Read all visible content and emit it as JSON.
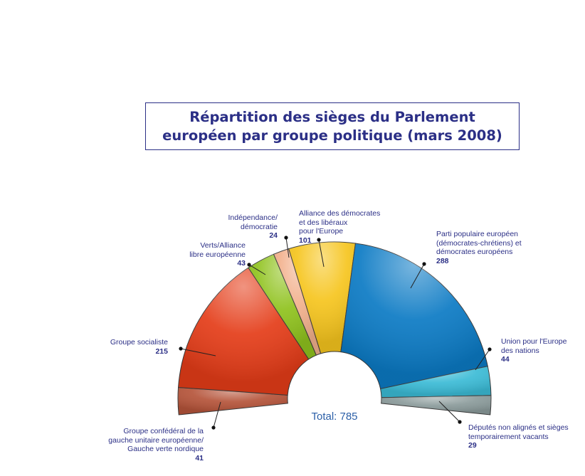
{
  "chart_data": {
    "type": "pie",
    "title": [
      "Répartition des sièges du Parlement",
      "européen par groupe politique (mars 2008)"
    ],
    "total_label": "Total: 785",
    "slices": [
      {
        "name": "Groupe confédéral de la\ngauche unitaire européenne/\nGauche verte nordique",
        "value": 41,
        "color": "#b5543a"
      },
      {
        "name": "Groupe socialiste",
        "value": 215,
        "color": "#e43c18"
      },
      {
        "name": "Verts/Alliance\nlibre européenne",
        "value": 43,
        "color": "#8fc21d"
      },
      {
        "name": "Indépendance/\ndémocratie",
        "value": 24,
        "color": "#f2b08c"
      },
      {
        "name": "Alliance des démocrates\net des libéraux\npour l'Europe",
        "value": 101,
        "color": "#f6c51e"
      },
      {
        "name": "Parti populaire européen\n(démocrates-chrétiens) et\ndémocrates européens",
        "value": 288,
        "color": "#0b7ac4"
      },
      {
        "name": "Union pour l'Europe\ndes nations",
        "value": 44,
        "color": "#3bbbd6"
      },
      {
        "name": "Députés non alignés et sièges\ntemporairement vacants",
        "value": 29,
        "color": "#8a9a9a"
      }
    ]
  }
}
